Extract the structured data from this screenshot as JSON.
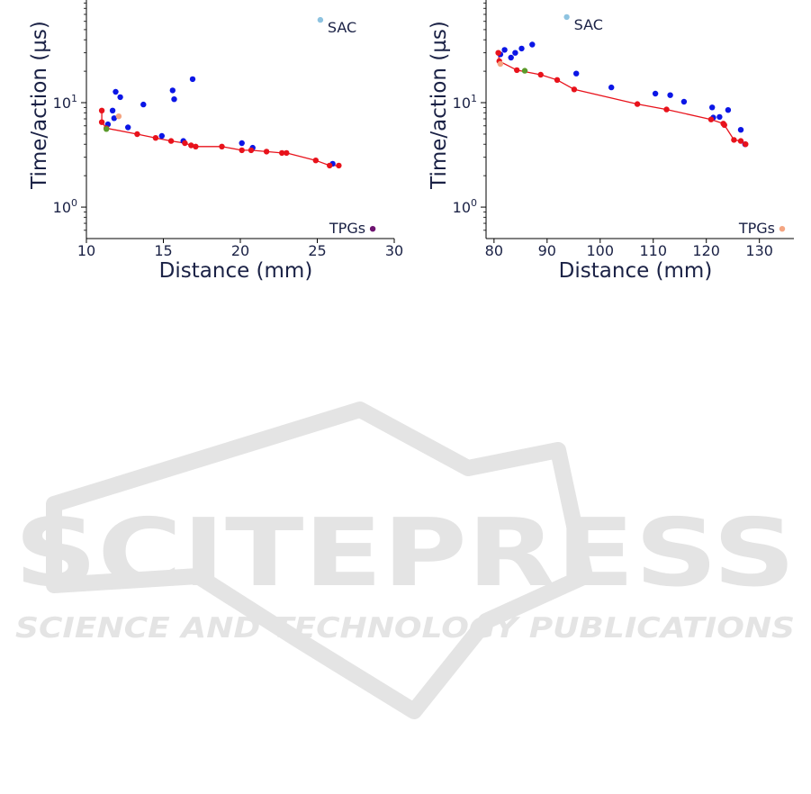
{
  "chart_data": [
    {
      "type": "scatter",
      "xlabel": "Distance (mm)",
      "ylabel": "Time/action (µs)",
      "xlim": [
        10,
        30
      ],
      "ylim": [
        0.5,
        100
      ],
      "yscale": "log",
      "xticks": [
        "10",
        "15",
        "20",
        "25",
        "30"
      ],
      "ytick_labels": [
        {
          "value": 1,
          "base": "10",
          "exp": "0"
        },
        {
          "value": 10,
          "base": "10",
          "exp": "1"
        }
      ],
      "grid": false,
      "series": [
        {
          "color": "#0b16e6",
          "points": [
            [
              11.4,
              6.2
            ],
            [
              11.7,
              8.4
            ],
            [
              11.8,
              7.1
            ],
            [
              11.9,
              12.7
            ],
            [
              12.2,
              11.3
            ],
            [
              12.7,
              5.8
            ],
            [
              13.7,
              9.6
            ],
            [
              14.9,
              4.8
            ],
            [
              15.6,
              13.1
            ],
            [
              15.7,
              10.8
            ],
            [
              16.3,
              4.3
            ],
            [
              16.9,
              16.8
            ],
            [
              20.1,
              4.1
            ],
            [
              20.8,
              3.7
            ],
            [
              26.0,
              2.6
            ]
          ]
        },
        {
          "color": "#e8121b",
          "frontier": true,
          "points": [
            [
              11.0,
              8.4
            ],
            [
              11.0,
              6.5
            ],
            [
              11.3,
              5.7
            ],
            [
              13.3,
              5.0
            ],
            [
              14.5,
              4.6
            ],
            [
              15.5,
              4.3
            ],
            [
              16.4,
              4.1
            ],
            [
              16.8,
              3.9
            ],
            [
              17.1,
              3.8
            ],
            [
              18.8,
              3.8
            ],
            [
              20.1,
              3.5
            ],
            [
              20.7,
              3.5
            ],
            [
              21.7,
              3.4
            ],
            [
              22.7,
              3.3
            ],
            [
              23.0,
              3.3
            ],
            [
              24.9,
              2.8
            ],
            [
              25.8,
              2.5
            ],
            [
              26.4,
              2.5
            ]
          ]
        },
        {
          "color": "#f4a582",
          "points": [
            [
              12.1,
              7.4
            ]
          ]
        },
        {
          "color": "#5a9a2a",
          "points": [
            [
              11.3,
              5.6
            ]
          ]
        },
        {
          "name": "SAC",
          "color": "#8ec3e0",
          "points": [
            [
              25.2,
              62
            ]
          ]
        },
        {
          "name": "TPGs",
          "color": "#6e1470",
          "points": [
            [
              28.6,
              0.62
            ]
          ]
        }
      ]
    },
    {
      "type": "scatter",
      "xlabel": "Distance (mm)",
      "ylabel": "Time/action (µs)",
      "xlim": [
        78.5,
        136.5
      ],
      "ylim": [
        0.5,
        100
      ],
      "yscale": "log",
      "xticks": [
        "80",
        "90",
        "100",
        "110",
        "120",
        "130"
      ],
      "ytick_labels": [
        {
          "value": 1,
          "base": "10",
          "exp": "0"
        },
        {
          "value": 10,
          "base": "10",
          "exp": "1"
        }
      ],
      "grid": false,
      "series": [
        {
          "color": "#0b16e6",
          "points": [
            [
              81.2,
              29
            ],
            [
              82,
              32
            ],
            [
              83.2,
              27
            ],
            [
              84,
              30
            ],
            [
              85.2,
              33
            ],
            [
              87.2,
              36
            ],
            [
              95.5,
              19
            ],
            [
              102.1,
              14
            ],
            [
              110.4,
              12.2
            ],
            [
              113.2,
              11.8
            ],
            [
              115.8,
              10.2
            ],
            [
              121.1,
              9.0
            ],
            [
              121.3,
              7.2
            ],
            [
              122.5,
              7.3
            ],
            [
              124.1,
              8.5
            ],
            [
              126.5,
              5.5
            ],
            [
              127.3,
              4.0
            ]
          ]
        },
        {
          "color": "#e8121b",
          "frontier": true,
          "points": [
            [
              80.8,
              30
            ],
            [
              81.0,
              25
            ],
            [
              84.3,
              20.5
            ],
            [
              88.8,
              18.5
            ],
            [
              91.9,
              16.5
            ],
            [
              95.1,
              13.4
            ],
            [
              107,
              9.7
            ],
            [
              112.5,
              8.6
            ],
            [
              120.9,
              6.9
            ],
            [
              123.2,
              6.3
            ],
            [
              123.4,
              6.1
            ],
            [
              125.2,
              4.4
            ],
            [
              126.5,
              4.3
            ],
            [
              127.4,
              4.0
            ]
          ]
        },
        {
          "color": "#f4a582",
          "points": [
            [
              81.2,
              23.5
            ]
          ]
        },
        {
          "color": "#5a9a2a",
          "points": [
            [
              85.8,
              20.2
            ]
          ]
        },
        {
          "name": "SAC",
          "color": "#8ec3e0",
          "points": [
            [
              93.7,
              66
            ]
          ]
        },
        {
          "name": "TPGs",
          "color": "#f4a582",
          "points": [
            [
              134.3,
              0.62
            ]
          ]
        }
      ]
    }
  ],
  "watermark": {
    "title": "SCITEPRESS",
    "subtitle": "SCIENCE AND TECHNOLOGY PUBLICATIONS",
    "color": "#e4e4e4"
  }
}
